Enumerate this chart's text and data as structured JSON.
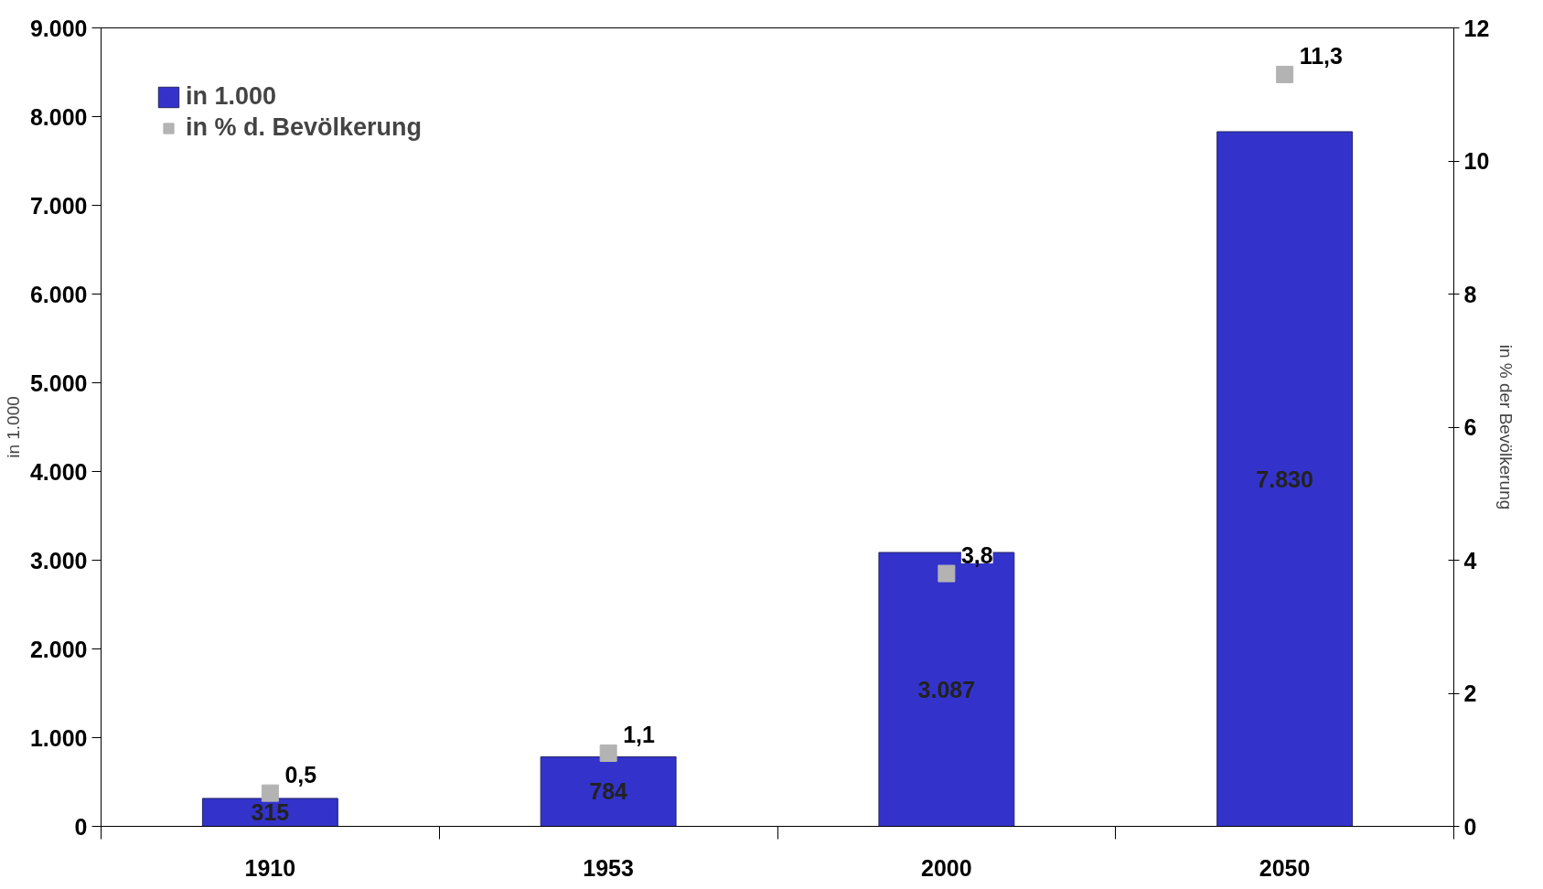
{
  "chart_data": {
    "type": "bar",
    "categories": [
      "1910",
      "1953",
      "2000",
      "2050"
    ],
    "ylabel": "in 1.000",
    "y2label": "in % der Bevölkerung",
    "ylim": [
      0,
      9000
    ],
    "yticks": [
      {
        "value": 0,
        "label": "0"
      },
      {
        "value": 1000,
        "label": "1.000"
      },
      {
        "value": 2000,
        "label": "2.000"
      },
      {
        "value": 3000,
        "label": "3.000"
      },
      {
        "value": 4000,
        "label": "4.000"
      },
      {
        "value": 5000,
        "label": "5.000"
      },
      {
        "value": 6000,
        "label": "6.000"
      },
      {
        "value": 7000,
        "label": "7.000"
      },
      {
        "value": 8000,
        "label": "8.000"
      },
      {
        "value": 9000,
        "label": "9.000"
      }
    ],
    "y2lim": [
      0,
      12
    ],
    "y2ticks": [
      0,
      2,
      4,
      6,
      8,
      10,
      12
    ],
    "series": [
      {
        "name": "in 1.000",
        "color": "#3333cc",
        "values": [
          315,
          784,
          3087,
          7830
        ],
        "value_labels": [
          "315",
          "784",
          "3.087",
          "7.830"
        ]
      },
      {
        "name": "in % d. Bevölkerung",
        "type": "scatter",
        "axis": "y2",
        "marker": "square",
        "color": "#b3b3b3",
        "values": [
          0.5,
          1.1,
          3.8,
          11.3
        ],
        "value_labels": [
          "0,5",
          "1,1",
          "3,8",
          "11,3"
        ]
      }
    ],
    "legend": "top left",
    "grid": false
  }
}
